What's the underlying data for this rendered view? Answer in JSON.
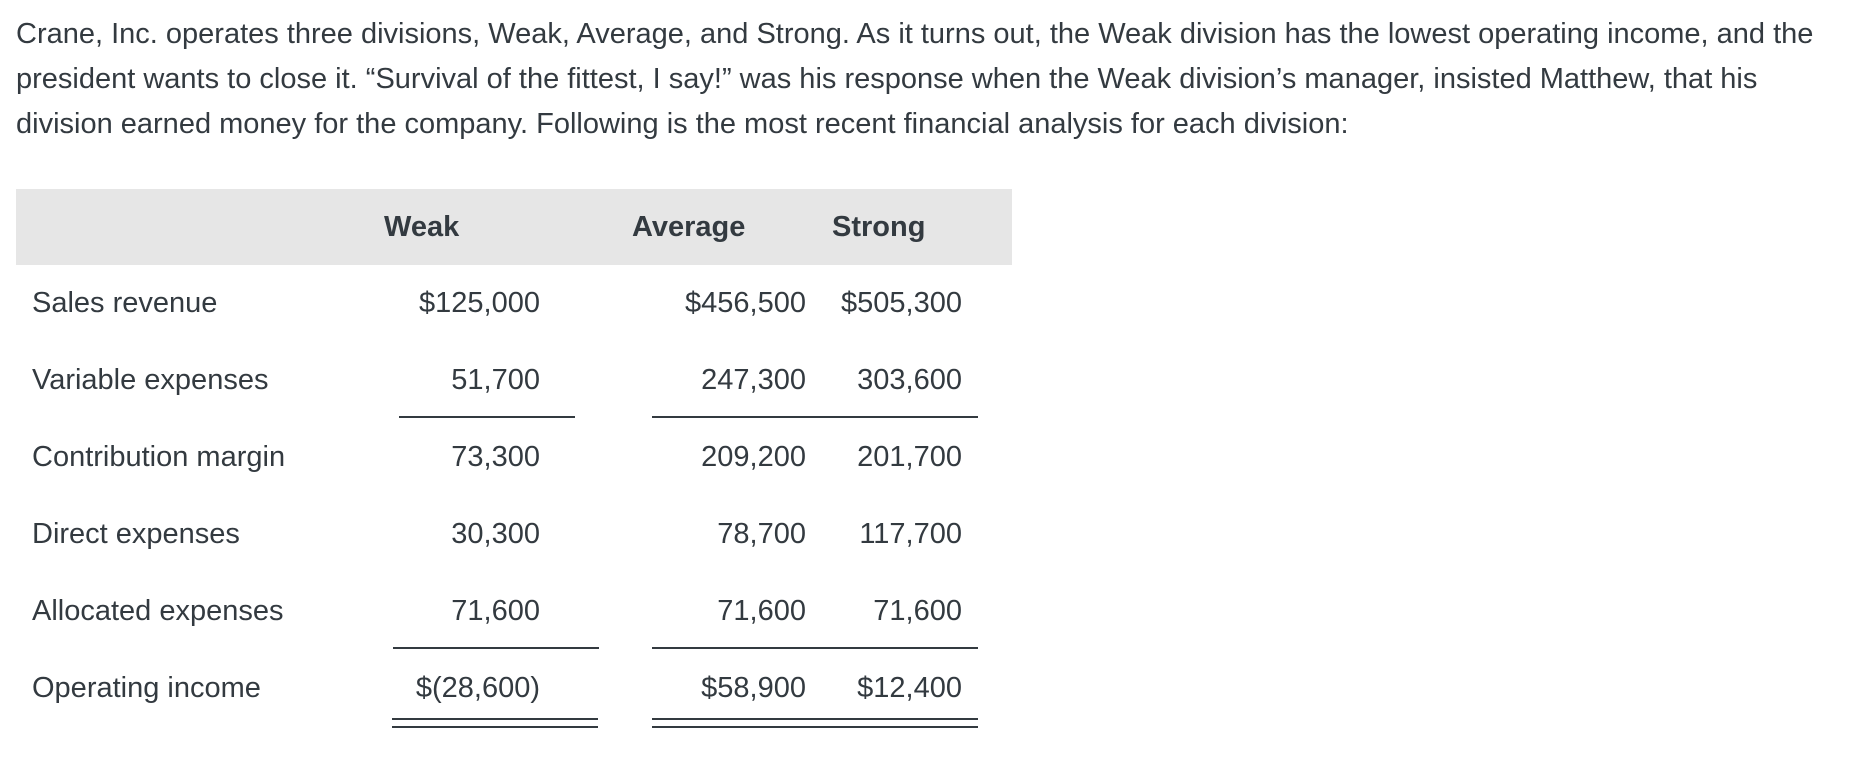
{
  "intro": {
    "text": "Crane, Inc. operates three divisions, Weak, Average, and Strong. As it turns out, the Weak division has the lowest operating income, and the president wants to close it. “Survival of the fittest, I say!” was his response when the Weak division’s manager, insisted Matthew, that his division earned money for the company. Following is the most recent financial analysis for each division:"
  },
  "table": {
    "headers": {
      "label": "",
      "weak": "Weak",
      "average": "Average",
      "strong": "Strong"
    },
    "rows": [
      {
        "label": "Sales revenue",
        "weak": "$125,000",
        "average": "$456,500",
        "strong": "$505,300"
      },
      {
        "label": "Variable expenses",
        "weak": "51,700",
        "average": "247,300",
        "strong": "303,600"
      },
      {
        "label": "Contribution margin",
        "weak": "73,300",
        "average": "209,200",
        "strong": "201,700"
      },
      {
        "label": "Direct expenses",
        "weak": "30,300",
        "average": "78,700",
        "strong": "117,700"
      },
      {
        "label": "Allocated expenses",
        "weak": "71,600",
        "average": "71,600",
        "strong": "71,600"
      },
      {
        "label": "Operating income",
        "weak": "$(28,600)",
        "average": "$58,900",
        "strong": "$12,400"
      }
    ]
  }
}
